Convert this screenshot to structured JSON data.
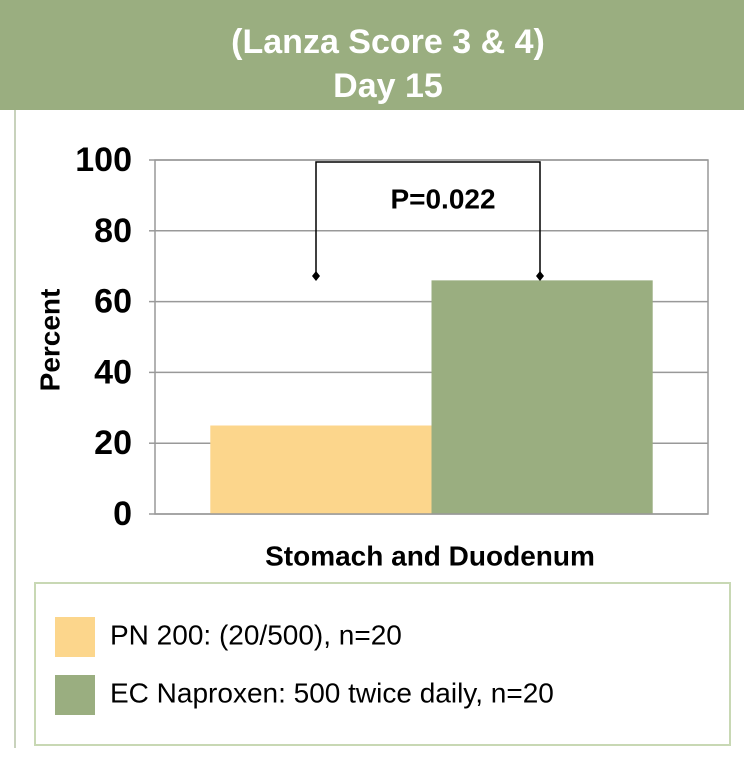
{
  "chart_data": {
    "type": "bar",
    "title": [
      "(Lanza Score 3 & 4)",
      "Day 15"
    ],
    "categories": [
      "Stomach and Duodenum"
    ],
    "x_label": "Stomach and Duodenum",
    "y_label": "Percent",
    "annotation": "P=0.022",
    "series": [
      {
        "name": "PN 200: (20/500), n=20",
        "color": "#fcd68c",
        "values": [
          25
        ]
      },
      {
        "name": "EC Naproxen: 500 twice daily, n=20",
        "color": "#9aae80",
        "values": [
          66
        ]
      }
    ],
    "ylim": [
      0,
      100
    ],
    "yticks": [
      0,
      20,
      40,
      60,
      80,
      100
    ],
    "grid": true,
    "legend": "bottom"
  }
}
